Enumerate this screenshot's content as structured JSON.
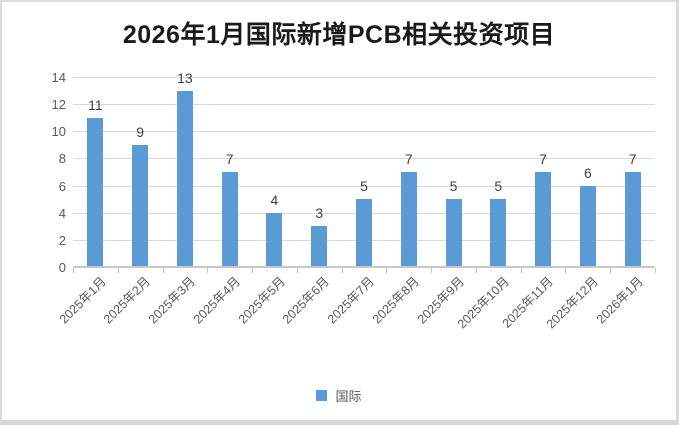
{
  "title": "2026年1月国际新增PCB相关投资项目",
  "legend": {
    "label": "国际"
  },
  "chart_data": {
    "type": "bar",
    "title": "2026年1月国际新增PCB相关投资项目",
    "categories": [
      "2025年1月",
      "2025年2月",
      "2025年3月",
      "2025年4月",
      "2025年5月",
      "2025年6月",
      "2025年7月",
      "2025年8月",
      "2025年9月",
      "2025年10月",
      "2025年11月",
      "2025年12月",
      "2026年1月"
    ],
    "series": [
      {
        "name": "国际",
        "values": [
          11,
          9,
          13,
          7,
          4,
          3,
          5,
          7,
          5,
          5,
          7,
          6,
          7
        ]
      }
    ],
    "xlabel": "",
    "ylabel": "",
    "ylim": [
      0,
      14
    ],
    "yticks": [
      0,
      2,
      4,
      6,
      8,
      10,
      12,
      14
    ],
    "grid": true,
    "data_labels": true,
    "legend_position": "bottom",
    "colors": {
      "bar": "#5b9bd5",
      "gridline": "#d9d9d9",
      "axis_line": "#c8c8c8",
      "title": "#1a1a1a",
      "data_label": "#3f3f3f",
      "tick_label": "#595959"
    }
  }
}
